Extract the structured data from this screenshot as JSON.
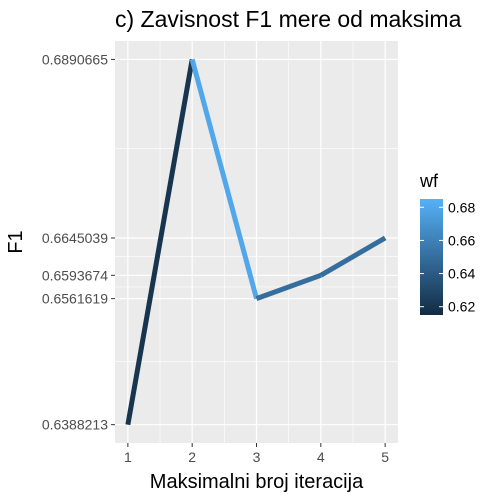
{
  "chart_data": {
    "type": "line",
    "title": "c) Zavisnost F1 mere od maksima",
    "xlabel": "Maksimalni broj iteracija",
    "ylabel": "F1",
    "x": [
      1,
      2,
      3,
      4,
      5
    ],
    "y": [
      0.6388213,
      0.6890665,
      0.6561619,
      0.6593674,
      0.6645039
    ],
    "wf": [
      0.62,
      0.68,
      0.65,
      0.65,
      0.65
    ],
    "x_ticks": [
      "1",
      "2",
      "3",
      "4",
      "5"
    ],
    "y_ticks": [
      "0.6388213",
      "0.6561619",
      "0.6593674",
      "0.6645039",
      "0.6890665"
    ],
    "xlim": [
      0.8,
      5.2
    ],
    "ylim": [
      0.6363,
      0.6916
    ],
    "grid": true,
    "legend": {
      "title": "wf",
      "placement": "right",
      "type": "colorbar",
      "range": [
        0.615,
        0.685
      ],
      "ticks": [
        "0.62",
        "0.64",
        "0.66",
        "0.68"
      ],
      "tick_values": [
        0.62,
        0.64,
        0.66,
        0.68
      ],
      "color_low": "#132B43",
      "color_high": "#56B1F7"
    },
    "panel_background": "#EBEBEB",
    "grid_color": "#FFFFFF"
  }
}
